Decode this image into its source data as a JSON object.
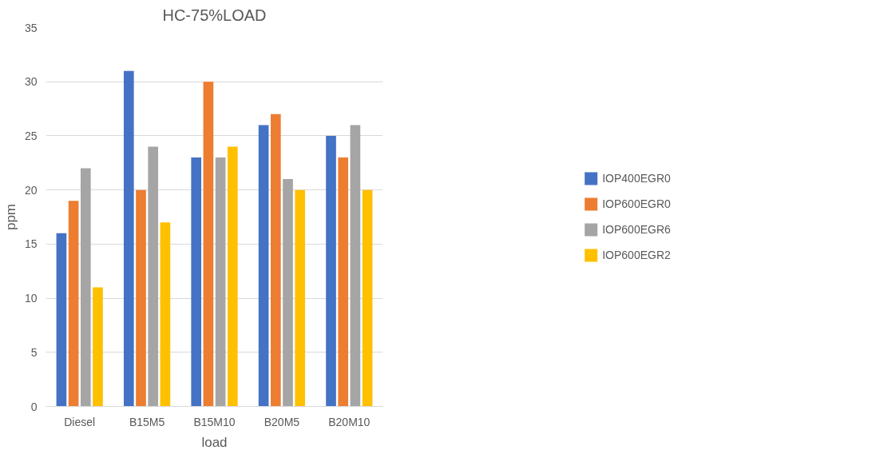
{
  "chart_data": {
    "type": "bar",
    "title": "HC-75%LOAD",
    "xlabel": "load",
    "ylabel": "ppm",
    "categories": [
      "Diesel",
      "B15M5",
      "B15M10",
      "B20M5",
      "B20M10"
    ],
    "series": [
      {
        "name": "IOP400EGR0",
        "color": "#4472c4",
        "values": [
          16,
          31,
          23,
          26,
          25
        ]
      },
      {
        "name": "IOP600EGR0",
        "color": "#ed7d31",
        "values": [
          19,
          20,
          30,
          27,
          23
        ]
      },
      {
        "name": "IOP600EGR6",
        "color": "#a5a5a5",
        "values": [
          22,
          24,
          23,
          21,
          26
        ]
      },
      {
        "name": "IOP600EGR2",
        "color": "#ffc000",
        "values": [
          11,
          17,
          24,
          20,
          20
        ]
      }
    ],
    "ylim": [
      0,
      35
    ],
    "yticks": [
      0,
      5,
      10,
      15,
      20,
      25,
      30,
      35
    ],
    "grid": "y",
    "legend": "right"
  }
}
